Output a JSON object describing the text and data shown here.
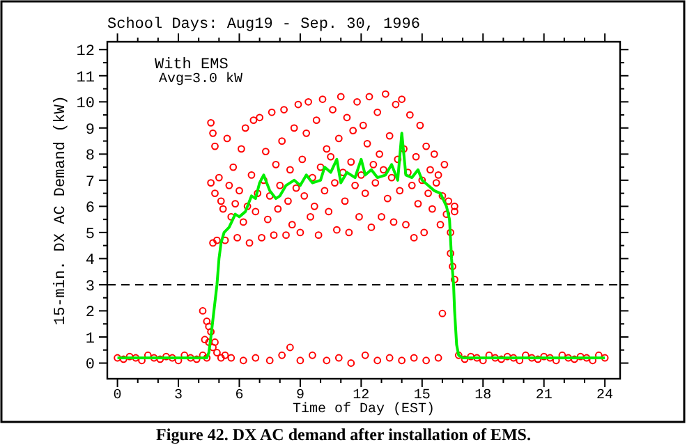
{
  "chart_data": {
    "type": "scatter",
    "title": "School Days: Aug19 - Sep. 30, 1996",
    "xlabel": "Time of Day (EST)",
    "ylabel": "15-min. DX AC Demand (kW)",
    "annotations": [
      "With EMS",
      "Avg=3.0 kW",
      "Figure 42.  DX AC demand after installation of EMS."
    ],
    "xlim": [
      -0.5,
      24.75
    ],
    "ylim": [
      -0.6,
      12.3
    ],
    "xticks": [
      0,
      {
        "value": 1,
        "label": null
      },
      {
        "value": 2,
        "label": null
      },
      3,
      {
        "value": 4,
        "label": null
      },
      {
        "value": 5,
        "label": null
      },
      6,
      {
        "value": 7,
        "label": null
      },
      {
        "value": 8,
        "label": null
      },
      9,
      {
        "value": 10,
        "label": null
      },
      {
        "value": 11,
        "label": null
      },
      12,
      {
        "value": 13,
        "label": null
      },
      {
        "value": 14,
        "label": null
      },
      15,
      {
        "value": 16,
        "label": null
      },
      {
        "value": 17,
        "label": null
      },
      18,
      {
        "value": 19,
        "label": null
      },
      {
        "value": 20,
        "label": null
      },
      21,
      {
        "value": 22,
        "label": null
      },
      {
        "value": 23,
        "label": null
      },
      24
    ],
    "yticks": [
      0,
      {
        "value": 0.5,
        "label": null
      },
      1,
      {
        "value": 1.5,
        "label": null
      },
      2,
      {
        "value": 2.5,
        "label": null
      },
      3,
      {
        "value": 3.5,
        "label": null
      },
      4,
      {
        "value": 4.5,
        "label": null
      },
      5,
      {
        "value": 5.5,
        "label": null
      },
      6,
      {
        "value": 6.5,
        "label": null
      },
      7,
      {
        "value": 7.5,
        "label": null
      },
      8,
      {
        "value": 8.5,
        "label": null
      },
      9,
      {
        "value": 9.5,
        "label": null
      },
      10,
      {
        "value": 10.5,
        "label": null
      },
      11,
      {
        "value": 11.5,
        "label": null
      },
      12
    ],
    "grid": false,
    "ref_lines": [
      {
        "axis": "y",
        "value": 3.0,
        "color": "#000000",
        "line_style": "dashed"
      }
    ],
    "series": [
      {
        "color": "#ff0000",
        "marker": "circle",
        "x": [
          0,
          0.3,
          0.6,
          0.9,
          1.2,
          1.5,
          1.8,
          2.1,
          2.4,
          2.7,
          3.0,
          3.3,
          3.6,
          3.9,
          4.2,
          4.4,
          4.3,
          4.4,
          4.2,
          4.5,
          4.6,
          4.7,
          4.8,
          4.9,
          5.1,
          5.3,
          4.5,
          5.6,
          6.2,
          6.8,
          7.5,
          8.1,
          8.5,
          9.0,
          9.6,
          10.3,
          10.9,
          11.5,
          12.2,
          12.8,
          13.4,
          14.0,
          14.6,
          15.2,
          15.8,
          16.0,
          4.6,
          4.7,
          4.8,
          4.6,
          4.8,
          4.7,
          4.9,
          5.0,
          5.1,
          5.2,
          5.3,
          5.4,
          5.5,
          5.6,
          5.7,
          5.8,
          5.9,
          6.0,
          6.1,
          6.2,
          6.3,
          6.4,
          6.5,
          6.6,
          6.7,
          6.8,
          6.9,
          7.0,
          7.1,
          7.2,
          7.3,
          7.4,
          7.5,
          7.6,
          7.7,
          7.8,
          7.9,
          8.0,
          8.1,
          8.2,
          8.3,
          8.4,
          8.5,
          8.6,
          8.7,
          8.8,
          8.9,
          9.0,
          9.1,
          9.2,
          9.3,
          9.4,
          9.5,
          9.6,
          9.7,
          9.8,
          9.9,
          10.0,
          10.1,
          10.2,
          10.3,
          10.4,
          10.5,
          10.6,
          10.7,
          10.8,
          10.9,
          11.0,
          11.1,
          11.2,
          11.3,
          11.4,
          11.5,
          11.6,
          11.7,
          11.8,
          11.9,
          12.0,
          12.1,
          12.2,
          12.3,
          12.4,
          12.5,
          12.6,
          12.7,
          12.8,
          12.9,
          13.0,
          13.1,
          13.2,
          13.3,
          13.4,
          13.5,
          13.6,
          13.7,
          13.8,
          13.9,
          14.0,
          14.1,
          14.2,
          14.3,
          14.4,
          14.5,
          14.6,
          14.7,
          14.8,
          14.9,
          15.0,
          15.1,
          15.2,
          15.3,
          15.4,
          15.5,
          15.6,
          15.7,
          15.8,
          15.9,
          16.0,
          16.1,
          16.2,
          16.3,
          16.4,
          16.5,
          16.6,
          16.4,
          16.6,
          16.6,
          16.8,
          17.1,
          17.4,
          17.7,
          18.0,
          18.3,
          18.6,
          18.9,
          19.2,
          19.5,
          19.8,
          20.1,
          20.4,
          20.7,
          21.0,
          21.3,
          21.6,
          21.9,
          22.2,
          22.5,
          22.8,
          23.1,
          23.4,
          23.7,
          24.0
        ],
        "values": [
          0.2,
          0.15,
          0.25,
          0.2,
          0.1,
          0.3,
          0.2,
          0.15,
          0.25,
          0.2,
          0.1,
          0.3,
          0.2,
          0.15,
          0.3,
          0.2,
          0.9,
          1.6,
          2.0,
          1.4,
          1.2,
          0.6,
          0.8,
          0.4,
          0.2,
          0.3,
          0.8,
          0.2,
          0.1,
          0.2,
          0.1,
          0.3,
          0.6,
          0.1,
          0.3,
          0.1,
          0.2,
          0.0,
          0.3,
          0.1,
          0.2,
          0.1,
          0.2,
          0.1,
          0.2,
          1.9,
          9.2,
          8.8,
          8.3,
          6.9,
          6.5,
          4.6,
          4.7,
          7.1,
          6.2,
          5.9,
          4.7,
          8.6,
          6.8,
          5.6,
          7.5,
          6.1,
          4.8,
          6.6,
          8.2,
          5.4,
          9.0,
          6.0,
          4.6,
          7.2,
          9.3,
          5.8,
          6.5,
          9.4,
          4.8,
          7.0,
          8.1,
          5.5,
          6.4,
          9.6,
          4.9,
          7.6,
          5.9,
          6.8,
          8.5,
          9.7,
          4.9,
          6.2,
          7.4,
          5.3,
          9.0,
          6.7,
          9.9,
          5.0,
          7.8,
          6.4,
          8.8,
          10.0,
          5.6,
          7.1,
          6.0,
          9.3,
          4.9,
          7.5,
          10.1,
          6.6,
          8.2,
          5.8,
          7.9,
          9.7,
          6.9,
          5.1,
          8.6,
          10.2,
          7.3,
          6.2,
          9.4,
          5.0,
          7.7,
          8.9,
          6.8,
          10.0,
          5.6,
          7.2,
          9.1,
          6.5,
          8.4,
          10.2,
          5.2,
          7.6,
          6.9,
          9.6,
          8.0,
          5.6,
          7.4,
          10.3,
          6.3,
          8.7,
          7.1,
          5.4,
          9.9,
          7.8,
          6.6,
          10.1,
          8.2,
          5.3,
          7.3,
          9.5,
          6.8,
          4.8,
          7.9,
          6.1,
          9.1,
          7.0,
          5.0,
          8.3,
          6.5,
          7.4,
          5.9,
          8.0,
          6.9,
          7.2,
          5.3,
          6.4,
          7.6,
          5.7,
          6.2,
          4.2,
          3.7,
          3.2,
          5.0,
          5.8,
          6.0,
          0.3,
          0.15,
          0.25,
          0.2,
          0.1,
          0.3,
          0.2,
          0.15,
          0.25,
          0.2,
          0.1,
          0.3,
          0.2,
          0.15,
          0.25,
          0.2,
          0.1,
          0.3,
          0.2,
          0.15,
          0.25,
          0.2,
          0.1,
          0.3,
          0.2
        ]
      },
      {
        "type": "line",
        "color": "#00ee00",
        "marker": "none",
        "line_style": "solid",
        "x": [
          0,
          4.4,
          4.5,
          4.6,
          4.75,
          4.9,
          5.0,
          5.1,
          5.25,
          5.5,
          5.8,
          6.0,
          6.3,
          6.6,
          6.8,
          7.0,
          7.2,
          7.5,
          7.8,
          8.0,
          8.3,
          8.7,
          9.0,
          9.3,
          9.6,
          10.0,
          10.2,
          10.5,
          10.8,
          11.0,
          11.3,
          11.7,
          12.0,
          12.2,
          12.5,
          12.8,
          13.2,
          13.5,
          13.8,
          14.0,
          14.2,
          14.5,
          14.8,
          15.0,
          15.3,
          15.6,
          15.9,
          16.2,
          16.35,
          16.45,
          16.55,
          16.6,
          16.7,
          16.8,
          17.0,
          24
        ],
        "values": [
          0.2,
          0.2,
          0.4,
          1.0,
          2.0,
          3.0,
          4.0,
          4.6,
          5.0,
          5.2,
          5.7,
          5.6,
          5.8,
          6.4,
          6.3,
          6.9,
          7.2,
          6.6,
          6.3,
          6.4,
          6.8,
          7.0,
          6.8,
          7.2,
          6.9,
          7.0,
          7.5,
          7.3,
          7.8,
          6.9,
          7.3,
          7.1,
          7.8,
          7.2,
          7.4,
          7.1,
          7.2,
          7.6,
          7.0,
          8.8,
          7.2,
          7.1,
          7.4,
          7.0,
          6.8,
          6.6,
          6.5,
          6.0,
          5.5,
          4.0,
          3.0,
          2.0,
          0.7,
          0.3,
          0.2,
          0.2
        ]
      }
    ]
  }
}
